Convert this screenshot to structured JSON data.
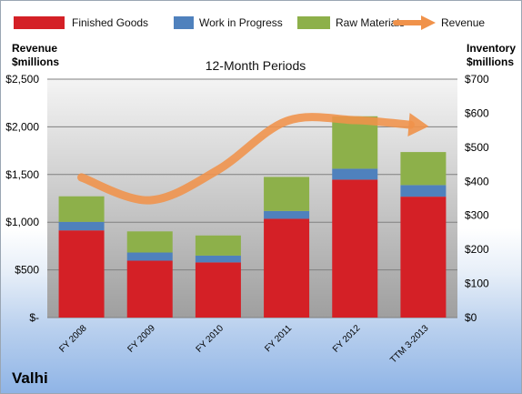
{
  "chart_data": {
    "type": "bar",
    "stacked": true,
    "title": "12-Month Periods",
    "company": "Valhi",
    "categories": [
      "FY 2008",
      "FY 2009",
      "FY 2010",
      "FY 2011",
      "FY 2012",
      "TTM 3-2013"
    ],
    "series": [
      {
        "name": "Finished Goods",
        "axis": "right",
        "color": "#d42026",
        "values": [
          256,
          167,
          162,
          290,
          405,
          355
        ]
      },
      {
        "name": "Work in Progress",
        "axis": "right",
        "color": "#4f81bd",
        "values": [
          25,
          24,
          20,
          23,
          32,
          34
        ]
      },
      {
        "name": "Raw Materials",
        "axis": "right",
        "color": "#8db04a",
        "values": [
          75,
          62,
          59,
          100,
          154,
          97
        ]
      },
      {
        "name": "Revenue",
        "axis": "left",
        "type": "line",
        "style": "arrow",
        "color": "#f0924a",
        "values": [
          1470,
          1230,
          1550,
          2060,
          2070,
          2010
        ]
      }
    ],
    "left_axis": {
      "label_line1": "Revenue",
      "label_line2": "$millions",
      "ylim": [
        0,
        2500
      ],
      "ticks": [
        0,
        500,
        1000,
        1500,
        2000,
        2500
      ],
      "tick_labels": [
        "$-",
        "$500",
        "$1,000",
        "$1,500",
        "$2,000",
        "$2,500"
      ]
    },
    "right_axis": {
      "label_line1": "Inventory",
      "label_line2": "$millions",
      "ylim": [
        0,
        700
      ],
      "ticks": [
        0,
        100,
        200,
        300,
        400,
        500,
        600,
        700
      ],
      "tick_labels": [
        "$0",
        "$100",
        "$200",
        "$300",
        "$400",
        "$500",
        "$600",
        "$700"
      ]
    },
    "grid": true,
    "legend_position": "top"
  }
}
